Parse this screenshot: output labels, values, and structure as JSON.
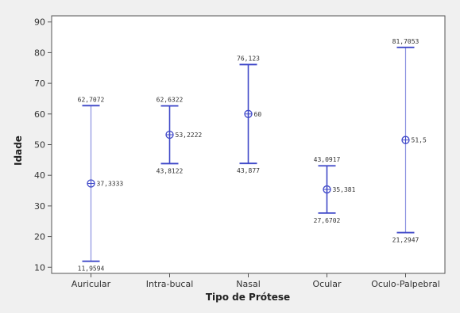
{
  "chart_data": {
    "type": "interval",
    "xlabel": "Tipo de Prótese",
    "ylabel": "Idade",
    "ylim": [
      8,
      92
    ],
    "yticks": [
      10,
      20,
      30,
      40,
      50,
      60,
      70,
      80,
      90
    ],
    "grid": false,
    "categories": [
      "Auricular",
      "Intra-bucal",
      "Nasal",
      "Ocular",
      "Oculo-Palpebral"
    ],
    "intervals": [
      {
        "category": "Auricular",
        "mean": 37.3333,
        "lower": 11.9594,
        "upper": 62.7072,
        "mean_label": "37,3333",
        "lower_label": "11,9594",
        "upper_label": "62,7072"
      },
      {
        "category": "Intra-bucal",
        "mean": 53.2222,
        "lower": 43.8122,
        "upper": 62.6322,
        "mean_label": "53,2222",
        "lower_label": "43,8122",
        "upper_label": "62,6322"
      },
      {
        "category": "Nasal",
        "mean": 60,
        "lower": 43.877,
        "upper": 76.123,
        "mean_label": "60",
        "lower_label": "43,877",
        "upper_label": "76,123"
      },
      {
        "category": "Ocular",
        "mean": 35.381,
        "lower": 27.6702,
        "upper": 43.0917,
        "mean_label": "35,381",
        "lower_label": "27,6702",
        "upper_label": "43,0917"
      },
      {
        "category": "Oculo-Palpebral",
        "mean": 51.5,
        "lower": 21.2947,
        "upper": 81.7053,
        "mean_label": "51,5",
        "lower_label": "21,2947",
        "upper_label": "81,7053"
      }
    ],
    "colors": {
      "interval": "#3f48c8",
      "interval_light": "#8a90e0",
      "axis": "#555555",
      "plot_bg": "#ffffff",
      "page_bg": "#f0f0f0"
    }
  }
}
